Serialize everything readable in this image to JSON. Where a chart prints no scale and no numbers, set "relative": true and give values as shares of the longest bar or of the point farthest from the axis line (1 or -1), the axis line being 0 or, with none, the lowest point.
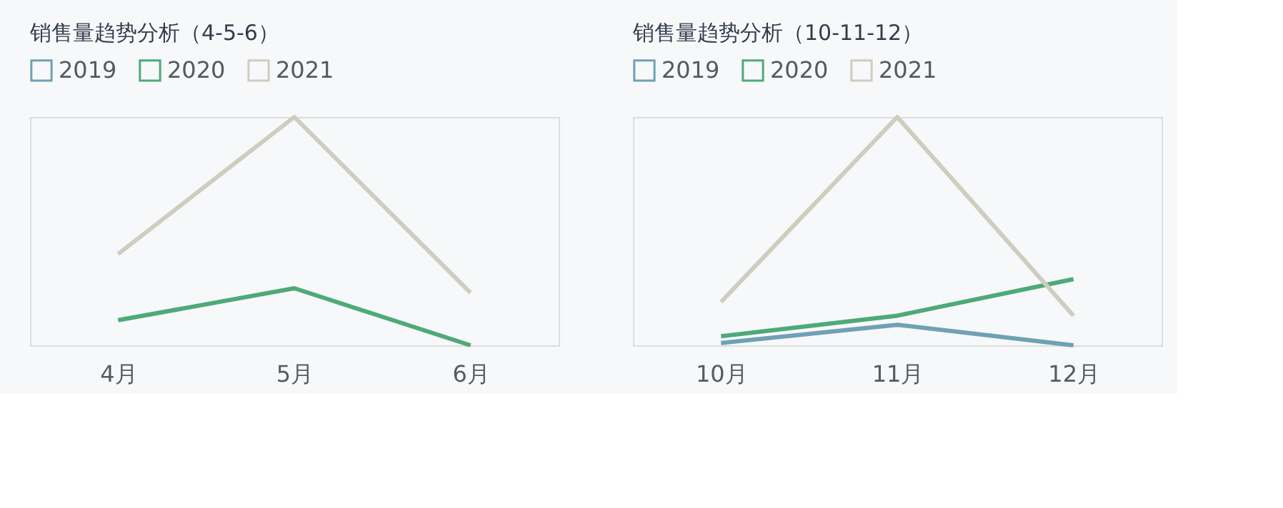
{
  "chart_data": [
    {
      "type": "line",
      "title": "销售量趋势分析（4-5-6）",
      "categories": [
        "4月",
        "5月",
        "6月"
      ],
      "relative": true,
      "legend": "top left",
      "grid": false,
      "tick_labels": "x",
      "series": [
        {
          "name": "2019",
          "color": "#6fa1b5",
          "values": [
            null,
            null,
            null
          ]
        },
        {
          "name": "2020",
          "color": "#4eaa78",
          "values": [
            0.11,
            0.25,
            0
          ]
        },
        {
          "name": "2021",
          "color": "#cfcdc0",
          "values": [
            0.4,
            1,
            0.23
          ]
        }
      ]
    },
    {
      "type": "line",
      "title": "销售量趋势分析（10-11-12）",
      "categories": [
        "10月",
        "11月",
        "12月"
      ],
      "relative": true,
      "legend": "top left",
      "grid": false,
      "tick_labels": "x",
      "series": [
        {
          "name": "2019",
          "color": "#6fa1b5",
          "values": [
            0.01,
            0.09,
            0
          ]
        },
        {
          "name": "2020",
          "color": "#4eaa78",
          "values": [
            0.04,
            0.13,
            0.29
          ]
        },
        {
          "name": "2021",
          "color": "#cfcdc0",
          "values": [
            0.19,
            1,
            0.13
          ]
        }
      ]
    }
  ]
}
